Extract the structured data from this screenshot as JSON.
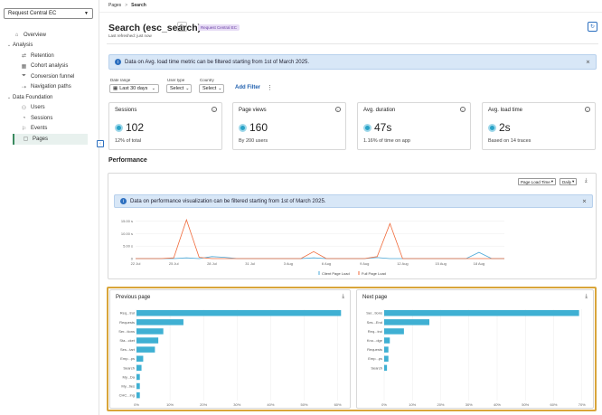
{
  "sidebar": {
    "app_select": "Request Central EC",
    "items": [
      {
        "label": "Overview",
        "level": 0,
        "icon": "home-icon",
        "glyph": "⌂"
      },
      {
        "label": "Analysis",
        "level": 0,
        "caret": "⌄"
      },
      {
        "label": "Retention",
        "level": 1,
        "icon": "retention-icon",
        "glyph": "⇄"
      },
      {
        "label": "Cohort analysis",
        "level": 1,
        "icon": "cohort-icon",
        "glyph": "▦"
      },
      {
        "label": "Conversion funnel",
        "level": 1,
        "icon": "funnel-icon",
        "glyph": "⏷"
      },
      {
        "label": "Navigation paths",
        "level": 1,
        "icon": "paths-icon",
        "glyph": "⇢"
      },
      {
        "label": "Data Foundation",
        "level": 0,
        "caret": "⌄"
      },
      {
        "label": "Users",
        "level": 1,
        "icon": "users-icon",
        "glyph": "⚇"
      },
      {
        "label": "Sessions",
        "level": 1,
        "icon": "sessions-icon",
        "glyph": "◔"
      },
      {
        "label": "Events",
        "level": 1,
        "icon": "events-icon",
        "glyph": "⚐"
      },
      {
        "label": "Pages",
        "level": 1,
        "icon": "pages-icon",
        "glyph": "▢",
        "active": true
      }
    ]
  },
  "breadcrumb": {
    "parent": "Pages",
    "sep": ">",
    "current": "Search"
  },
  "header": {
    "title": "Search (esc_search)",
    "app_badge": "Request Central EC",
    "refreshed": "Last refreshed: just now"
  },
  "banner_top": "Data on Avg. load time metric can be filtered starting from 1st of March 2025.",
  "filters": {
    "date_label": "Date range",
    "date_value": "Last 30 days",
    "usertype_label": "User type",
    "usertype_value": "Select",
    "country_label": "Country",
    "country_value": "Select",
    "add_filter": "Add Filter"
  },
  "cards": [
    {
      "title": "Sessions",
      "value": "102",
      "sub": "12% of total"
    },
    {
      "title": "Page views",
      "value": "160",
      "sub": "By 200 users"
    },
    {
      "title": "Avg. duration",
      "value": "47s",
      "sub": "1.16% of time on app"
    },
    {
      "title": "Avg. load time",
      "value": "2s",
      "sub": "Based on 14 traces"
    }
  ],
  "performance": {
    "title": "Performance",
    "metric_select": "Page Load Time",
    "granularity_select": "Daily",
    "banner": "Data on performance visualization can be filtered starting from 1st of March 2025."
  },
  "colors": {
    "primary": "#2c6fbf",
    "bar": "#3fb0d3",
    "full_load": "#f06a3a",
    "client_load": "#4aa8d8",
    "highlight": "#d9a53a"
  },
  "chart_data": [
    {
      "type": "line",
      "title": "Performance",
      "x": [
        "22 Jul",
        "23 Jul",
        "24 Jul",
        "25 Jul",
        "26 Jul",
        "27 Jul",
        "28 Jul",
        "29 Jul",
        "30 Jul",
        "31 Jul",
        "1 Aug",
        "2 Aug",
        "3 Aug",
        "4 Aug",
        "5 Aug",
        "6 Aug",
        "7 Aug",
        "8 Aug",
        "9 Aug",
        "10 Aug",
        "11 Aug",
        "12 Aug",
        "13 Aug",
        "14 Aug",
        "15 Aug",
        "16 Aug",
        "17 Aug",
        "18 Aug",
        "19 Aug",
        "20 Aug"
      ],
      "xticks": [
        "22 Jul",
        "25 Jul",
        "28 Jul",
        "31 Jul",
        "3 Aug",
        "6 Aug",
        "9 Aug",
        "12 Aug",
        "15 Aug",
        "18 Aug"
      ],
      "yticks": [
        "0",
        "5.00 s",
        "10.00 s",
        "15.00 s"
      ],
      "ylim": [
        0,
        17
      ],
      "series": [
        {
          "name": "Client Page Load",
          "values": [
            0,
            0,
            0,
            0,
            0.3,
            0,
            0.8,
            0.5,
            0,
            0,
            0,
            0,
            0,
            0,
            0.3,
            0,
            0,
            0,
            0,
            0.4,
            0,
            0,
            0,
            0,
            0,
            0,
            0,
            2.5,
            0,
            0
          ]
        },
        {
          "name": "Full Page Load",
          "values": [
            0,
            0,
            0,
            0.3,
            15.5,
            0.5,
            0,
            0,
            0,
            0,
            0,
            0,
            0,
            0,
            2.8,
            0,
            0,
            0,
            0,
            0.8,
            14.0,
            0,
            0,
            0,
            0,
            0,
            0,
            0,
            0,
            0
          ]
        }
      ]
    },
    {
      "type": "bar",
      "title": "Previous page",
      "orientation": "horizontal",
      "categories": [
        "Req...trol",
        "Requests",
        "Ser...tions",
        "Sta...cket",
        "Ses...tart",
        "Emp...ps",
        "Search",
        "My...Da",
        "My...ties",
        "CHC...ing"
      ],
      "values": [
        61,
        14,
        8,
        6.5,
        5.5,
        2,
        1.5,
        1,
        1,
        1
      ],
      "xticks": [
        "0%",
        "10%",
        "20%",
        "30%",
        "40%",
        "50%",
        "60%"
      ],
      "xlim": [
        0,
        62
      ]
    },
    {
      "type": "bar",
      "title": "Next page",
      "orientation": "horizontal",
      "categories": [
        "Ser...tions",
        "Ses...End",
        "Req...trol",
        "Kno...dge",
        "Requests",
        "Emp...ps",
        "Search"
      ],
      "values": [
        69,
        16,
        7,
        2,
        1.5,
        1.5,
        1
      ],
      "xticks": [
        "0%",
        "10%",
        "20%",
        "30%",
        "40%",
        "50%",
        "60%",
        "70%"
      ],
      "xlim": [
        0,
        72
      ]
    }
  ]
}
